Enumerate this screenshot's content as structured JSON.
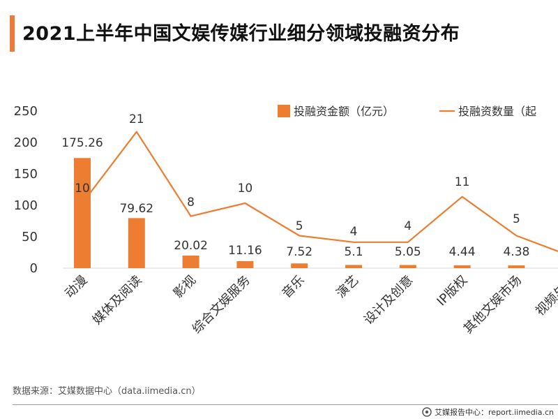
{
  "title": "2021上半年中国文娱传媒行业细分领域投融资分布",
  "source": "数据来源：艾媒数据中心（data.iimedia.cn）",
  "footer": "艾媒报告中心：report.iimedia.cn",
  "colors": {
    "bar": "#ed7d31",
    "line": "#ed7d31",
    "accent": "#ec7a3b"
  },
  "chart_data": {
    "type": "bar",
    "categories": [
      "动漫",
      "媒体及阅读",
      "影视",
      "综合文娱服务",
      "音乐",
      "演艺",
      "设计及创意",
      "IP版权",
      "其他文娱市场",
      "视频与直"
    ],
    "series": [
      {
        "name": "投融资金额（亿元）",
        "type": "bar",
        "values": [
          175.26,
          79.62,
          20.02,
          11.16,
          7.52,
          5.1,
          5.05,
          4.44,
          4.38,
          null
        ]
      },
      {
        "name": "投融资数量（起",
        "type": "line",
        "values": [
          10,
          21,
          8,
          10,
          5,
          4,
          4,
          11,
          5,
          4
        ]
      }
    ],
    "bar_labels": [
      "175.26",
      "79.62",
      "20.02",
      "11.16",
      "7.52",
      "5.1",
      "5.05",
      "4.44",
      "4.38"
    ],
    "line_labels": [
      "10",
      "21",
      "8",
      "10",
      "5",
      "4",
      "4",
      "11",
      "5"
    ],
    "y_ticks": [
      "250",
      "200",
      "150",
      "100",
      "50",
      "0"
    ],
    "ylim": [
      0,
      250
    ],
    "grid": false,
    "legend_position": "top-right"
  }
}
